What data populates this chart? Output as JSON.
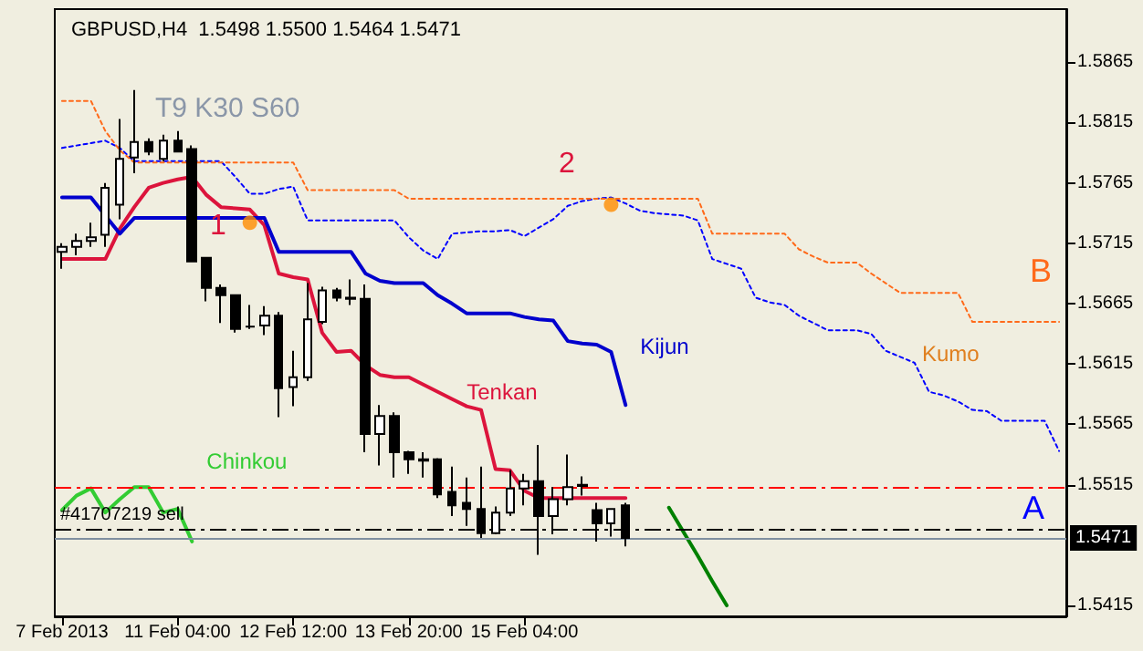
{
  "chart_data": {
    "type": "candlestick",
    "title": "GBPUSD,H4  1.5498 1.5500 1.5464 1.5471",
    "categories": [
      "7 Feb 2013",
      null,
      null,
      null,
      null,
      null,
      null,
      null,
      "11 Feb 04:00",
      null,
      null,
      null,
      null,
      null,
      null,
      null,
      "12 Feb 12:00",
      null,
      null,
      null,
      null,
      null,
      null,
      null,
      "13 Feb 20:00",
      null,
      null,
      null,
      null,
      null,
      null,
      null,
      "15 Feb 04:00",
      null,
      null,
      null,
      null,
      null,
      null,
      null,
      null,
      null,
      null,
      null,
      null,
      null,
      null,
      null,
      null,
      null,
      null,
      null,
      null,
      null,
      null,
      null,
      null,
      null,
      null,
      null,
      null,
      null,
      null,
      null,
      null,
      null,
      null,
      null,
      null,
      null
    ],
    "ohlc": [
      [
        1.5708,
        1.5715,
        1.5694,
        1.5712
      ],
      [
        1.5712,
        1.5723,
        1.5705,
        1.5717
      ],
      [
        1.5717,
        1.5732,
        1.5712,
        1.572
      ],
      [
        1.5722,
        1.5765,
        1.5712,
        1.5761
      ],
      [
        1.5747,
        1.5818,
        1.5735,
        1.5785
      ],
      [
        1.5786,
        1.5842,
        1.5773,
        1.5799
      ],
      [
        1.5799,
        1.5802,
        1.5788,
        1.5791
      ],
      [
        1.5785,
        1.5805,
        1.5783,
        1.58
      ],
      [
        1.58,
        1.5808,
        1.5791,
        1.5791
      ],
      [
        1.5793,
        1.5796,
        1.57,
        1.57
      ],
      [
        1.5703,
        1.5703,
        1.5667,
        1.5678
      ],
      [
        1.5678,
        1.5681,
        1.5649,
        1.5672
      ],
      [
        1.5672,
        1.5672,
        1.5641,
        1.5644
      ],
      [
        1.5646,
        1.5664,
        1.5644,
        1.5646
      ],
      [
        1.5647,
        1.5663,
        1.5639,
        1.5655
      ],
      [
        1.5655,
        1.5658,
        1.5571,
        1.5595
      ],
      [
        1.5596,
        1.5626,
        1.558,
        1.5604
      ],
      [
        1.5604,
        1.5682,
        1.5601,
        1.5652
      ],
      [
        1.565,
        1.5679,
        1.5648,
        1.5676
      ],
      [
        1.5676,
        1.5678,
        1.5667,
        1.567
      ],
      [
        1.567,
        1.5685,
        1.5664,
        1.5669
      ],
      [
        1.5669,
        1.5681,
        1.5542,
        1.5557
      ],
      [
        1.5557,
        1.5581,
        1.5531,
        1.5572
      ],
      [
        1.5572,
        1.5575,
        1.5521,
        1.5542
      ],
      [
        1.5542,
        1.5543,
        1.5524,
        1.5536
      ],
      [
        1.5536,
        1.5542,
        1.5521,
        1.5535
      ],
      [
        1.5536,
        1.5537,
        1.5504,
        1.5507
      ],
      [
        1.5509,
        1.553,
        1.5489,
        1.5498
      ],
      [
        1.55,
        1.5521,
        1.5481,
        1.5495
      ],
      [
        1.5495,
        1.553,
        1.5471,
        1.5475
      ],
      [
        1.5475,
        1.5497,
        1.5474,
        1.5492
      ],
      [
        1.5492,
        1.5527,
        1.5489,
        1.5512
      ],
      [
        1.5512,
        1.5524,
        1.5498,
        1.5518
      ],
      [
        1.5518,
        1.5548,
        1.5457,
        1.5489
      ],
      [
        1.5489,
        1.5513,
        1.5474,
        1.5503
      ],
      [
        1.5503,
        1.554,
        1.5498,
        1.5513
      ],
      [
        1.5515,
        1.5522,
        1.5506,
        1.5514
      ],
      [
        1.5494,
        1.55,
        1.5468,
        1.5483
      ],
      [
        1.5483,
        1.5495,
        1.5472,
        1.5495
      ],
      [
        1.5498,
        1.55,
        1.5464,
        1.5471
      ],
      null,
      null,
      null,
      null,
      null,
      null,
      null,
      null,
      null,
      null,
      null,
      null,
      null,
      null,
      null,
      null,
      null,
      null,
      null,
      null,
      null,
      null,
      null,
      null,
      null,
      null,
      null,
      null,
      null,
      null
    ],
    "series": [
      {
        "type": "line",
        "name": "Tenkan",
        "color": "#dc143c",
        "values": [
          1.5702,
          1.5702,
          1.5702,
          1.5702,
          1.5727,
          1.5745,
          1.5761,
          1.5765,
          1.5768,
          1.577,
          1.5755,
          1.5745,
          1.5744,
          1.5743,
          1.573,
          1.569,
          1.5687,
          1.5685,
          1.5641,
          1.5625,
          1.5626,
          1.5614,
          1.5606,
          1.5604,
          1.5604,
          1.5598,
          1.5592,
          1.5586,
          1.558,
          1.5577,
          1.5528,
          1.5527,
          1.551,
          1.5504,
          1.5504,
          1.5504,
          1.5504,
          1.5504,
          1.5504,
          1.5504,
          null,
          null,
          null,
          null,
          null,
          null,
          null,
          null,
          null,
          null,
          null,
          null,
          null,
          null,
          null,
          null,
          null,
          null,
          null,
          null,
          null,
          null,
          null,
          null,
          null,
          null,
          null,
          null,
          null,
          null
        ]
      },
      {
        "type": "line",
        "name": "Kijun",
        "color": "#0000cd",
        "values": [
          1.5753,
          1.5753,
          1.5753,
          1.5738,
          1.5723,
          1.5736,
          1.5736,
          1.5736,
          1.5736,
          1.5736,
          1.5736,
          1.5736,
          1.5736,
          1.5736,
          1.5736,
          1.5708,
          1.5708,
          1.5708,
          1.5708,
          1.5708,
          1.5708,
          1.569,
          1.5684,
          1.5682,
          1.5682,
          1.5682,
          1.5672,
          1.5665,
          1.5657,
          1.5657,
          1.5657,
          1.5657,
          1.5654,
          1.5652,
          1.5651,
          1.5634,
          1.5632,
          1.5631,
          1.5625,
          1.5581,
          null,
          null,
          null,
          null,
          null,
          null,
          null,
          null,
          null,
          null,
          null,
          null,
          null,
          null,
          null,
          null,
          null,
          null,
          null,
          null,
          null,
          null,
          null,
          null,
          null,
          null,
          null,
          null,
          null,
          null
        ]
      },
      {
        "type": "line",
        "name": "Chinkou",
        "color": "#33cc33",
        "values": [
          1.5494,
          1.5506,
          1.5512,
          1.5492,
          1.5503,
          1.5513,
          1.5513,
          1.5492,
          1.5495,
          1.5468,
          null,
          null,
          null,
          null,
          null,
          null,
          null,
          null,
          null,
          null,
          null,
          null,
          null,
          null,
          null,
          null,
          null,
          null,
          null,
          null,
          null,
          null,
          null,
          null,
          null,
          null,
          null,
          null,
          null,
          null,
          null,
          null,
          null,
          null,
          null,
          null,
          null,
          null,
          null,
          null,
          null,
          null,
          null,
          null,
          null,
          null,
          null,
          null,
          null,
          null,
          null,
          null,
          null,
          null,
          null,
          null,
          null,
          null,
          null,
          null
        ]
      },
      {
        "type": "line",
        "name": "A",
        "color": "#0000ff",
        "line_style": "dotted",
        "values": [
          1.5794,
          1.5796,
          1.5798,
          1.58,
          1.5794,
          1.5783,
          1.5783,
          1.5783,
          1.5783,
          1.5783,
          1.5783,
          1.5783,
          1.577,
          1.5756,
          1.5756,
          1.576,
          1.5762,
          1.5734,
          1.5734,
          1.5734,
          1.5734,
          1.5734,
          1.5734,
          1.5734,
          1.572,
          1.5709,
          1.5702,
          1.5723,
          1.5724,
          1.5725,
          1.5725,
          1.5726,
          1.5721,
          1.5728,
          1.5735,
          1.5746,
          1.575,
          1.5752,
          1.5753,
          1.5748,
          1.5742,
          1.574,
          1.5739,
          1.5738,
          1.5734,
          1.5702,
          1.5698,
          1.5694,
          1.567,
          1.5666,
          1.5664,
          1.5655,
          1.5649,
          1.5643,
          1.5643,
          1.5643,
          1.564,
          1.5626,
          1.5621,
          1.5616,
          1.5592,
          1.5589,
          1.5584,
          1.5577,
          1.5576,
          1.5568,
          1.5568,
          1.5568,
          1.5568,
          1.5543
        ]
      },
      {
        "type": "line",
        "name": "B",
        "color": "#ff6a1a",
        "line_style": "dotted",
        "values": [
          1.5833,
          1.5833,
          1.5833,
          1.5808,
          1.5792,
          1.5782,
          1.5782,
          1.5782,
          1.5782,
          1.5782,
          1.5782,
          1.5782,
          1.5782,
          1.5782,
          1.5782,
          1.5782,
          1.5782,
          1.5759,
          1.5759,
          1.5759,
          1.5759,
          1.5759,
          1.5759,
          1.5759,
          1.5752,
          1.5752,
          1.5752,
          1.5752,
          1.5752,
          1.5752,
          1.5752,
          1.5752,
          1.5752,
          1.5752,
          1.5752,
          1.5752,
          1.5752,
          1.5752,
          1.5752,
          1.5752,
          1.5752,
          1.5752,
          1.5752,
          1.5752,
          1.5752,
          1.5723,
          1.5723,
          1.5723,
          1.5723,
          1.5723,
          1.5723,
          1.571,
          1.5704,
          1.5699,
          1.5699,
          1.5699,
          1.569,
          1.5682,
          1.5674,
          1.5674,
          1.5674,
          1.5674,
          1.5674,
          1.565,
          1.565,
          1.565,
          1.565,
          1.565,
          1.565,
          1.565
        ]
      },
      {
        "type": "line",
        "color": "#008000",
        "values": [
          null,
          null,
          null,
          null,
          null,
          null,
          null,
          null,
          null,
          null,
          null,
          null,
          null,
          null,
          null,
          null,
          null,
          null,
          null,
          null,
          null,
          null,
          null,
          null,
          null,
          null,
          null,
          null,
          null,
          null,
          null,
          null,
          null,
          null,
          null,
          null,
          null,
          null,
          null,
          null,
          null,
          null,
          1.5496,
          1.5476,
          1.5456,
          1.5435,
          1.5415,
          null,
          null,
          null,
          null,
          null,
          null,
          null,
          null,
          null,
          null,
          null,
          null,
          null,
          null,
          null,
          null,
          null,
          null,
          null,
          null,
          null,
          null,
          null
        ]
      },
      {
        "type": "scatter",
        "color": "#ff8c00",
        "marker": "circle",
        "values": [
          null,
          null,
          null,
          null,
          null,
          null,
          null,
          null,
          null,
          null,
          null,
          null,
          null,
          1.5732,
          null,
          null,
          null,
          null,
          null,
          null,
          null,
          null,
          null,
          null,
          null,
          null,
          null,
          null,
          null,
          null,
          null,
          null,
          null,
          null,
          null,
          null,
          null,
          null,
          1.5747,
          null,
          null,
          null,
          null,
          null,
          null,
          null,
          null,
          null,
          null,
          null,
          null,
          null,
          null,
          null,
          null,
          null,
          null,
          null,
          null,
          null,
          null,
          null,
          null,
          null,
          null,
          null,
          null,
          null,
          null,
          null
        ]
      }
    ],
    "ylim": [
      1.5406,
      1.5909
    ],
    "yticks": [
      1.5415,
      1.5515,
      1.5565,
      1.5615,
      1.5665,
      1.5715,
      1.5765,
      1.5815,
      1.5865
    ],
    "ref_lines": [
      {
        "axis": "y",
        "value": 1.5513,
        "color": "#ff0000",
        "line_style": "dashed"
      },
      {
        "axis": "y",
        "value": 1.5478,
        "label": "#41707219 sell",
        "color": "#000000",
        "line_style": "dashed"
      },
      {
        "axis": "y",
        "value": 1.5471,
        "label": "1.5471",
        "color": "#8090a0",
        "line_style": "solid"
      }
    ],
    "annotations": [
      "T9 K30 S60",
      "Kumo",
      "1",
      "2"
    ],
    "marker": "none",
    "grid": false,
    "legend": false
  }
}
